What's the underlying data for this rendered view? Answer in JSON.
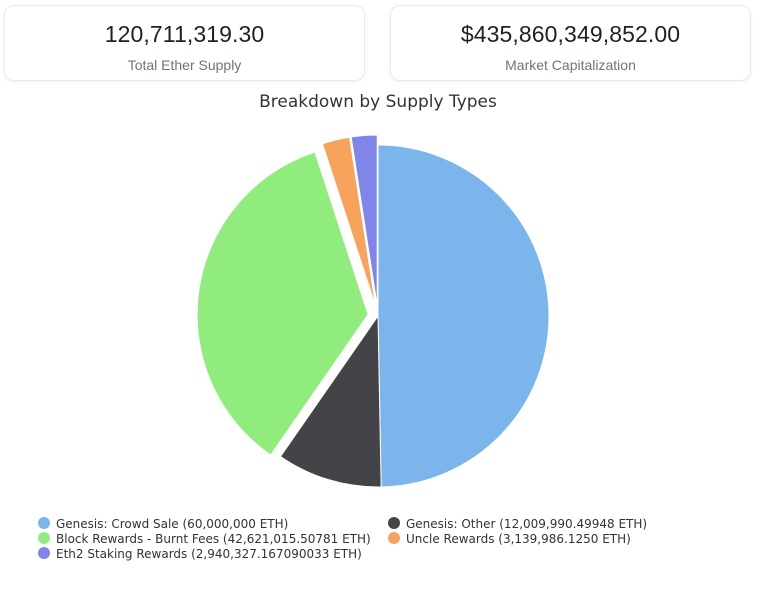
{
  "stats": {
    "total_supply_value": "120,711,319.30",
    "total_supply_label": "Total Ether Supply",
    "market_cap_value": "$435,860,349,852.00",
    "market_cap_label": "Market Capitalization"
  },
  "chart_data": {
    "type": "pie",
    "title": "Breakdown by Supply Types",
    "legend_position": "bottom",
    "slices": [
      {
        "label": "Genesis: Crowd Sale (60,000,000 ETH)",
        "value": 60000000,
        "color": "#7cb5ec",
        "exploded": false
      },
      {
        "label": "Genesis: Other (12,009,990.49948 ETH)",
        "value": 12009990.49948,
        "color": "#434348",
        "exploded": false
      },
      {
        "label": "Block Rewards - Burnt Fees (42,621,015.50781 ETH)",
        "value": 42621015.50781,
        "color": "#90ed7d",
        "exploded": true
      },
      {
        "label": "Uncle Rewards (3,139,986.1250 ETH)",
        "value": 3139986.125,
        "color": "#f7a35c",
        "exploded": true
      },
      {
        "label": "Eth2 Staking Rewards (2,940,327.167090033 ETH)",
        "value": 2940327.167090033,
        "color": "#8085e9",
        "exploded": true
      }
    ]
  }
}
